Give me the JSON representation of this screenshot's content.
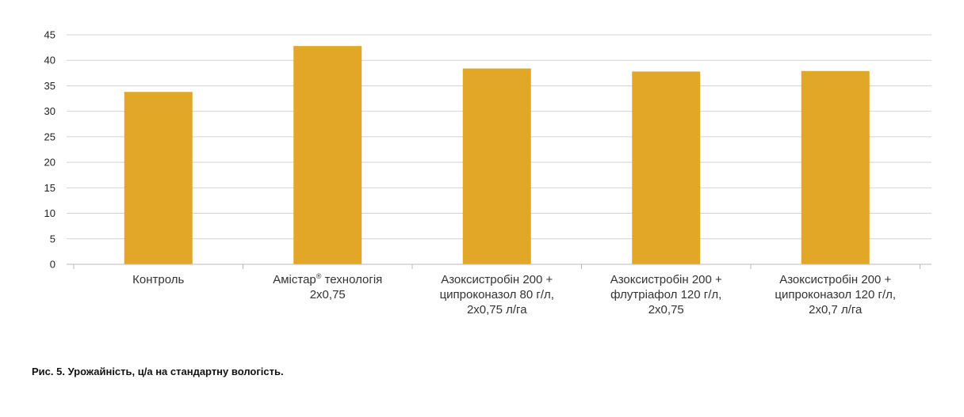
{
  "caption": "Рис. 5. Урожайність, ц/а на стандартну вологість.",
  "chart_data": {
    "type": "bar",
    "categories": [
      [
        "Контроль"
      ],
      [
        "Амістар® технологія",
        "2х0,75"
      ],
      [
        "Азоксистробін 200 +",
        "ципроконазол 80 г/л,",
        "2х0,75 л/га"
      ],
      [
        "Азоксистробін 200 +",
        "флутріафол 120 г/л,",
        "2х0,75"
      ],
      [
        "Азоксистробін 200 +",
        "ципроконазол 120 г/л,",
        "2х0,7 л/га"
      ]
    ],
    "values": [
      33.8,
      42.8,
      38.4,
      37.8,
      37.9
    ],
    "ylim": [
      0,
      45
    ],
    "yticks": [
      0,
      5,
      10,
      15,
      20,
      25,
      30,
      35,
      40,
      45
    ],
    "grid": true,
    "bar_color": "#E2A727",
    "grid_color": "#D4D4D4"
  }
}
